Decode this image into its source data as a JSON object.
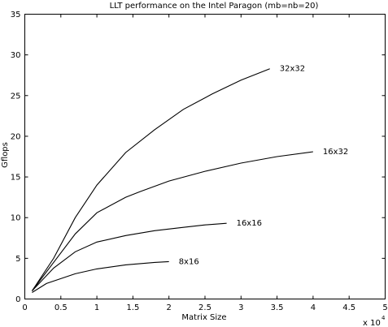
{
  "chart_data": {
    "type": "line",
    "title": "LLT performance on the Intel Paragon (mb=nb=20)",
    "xlabel": "Matrix Size",
    "ylabel": "Gflops",
    "x_multiplier_label": "x 10",
    "x_multiplier_exponent": "4",
    "xlim": [
      0,
      5
    ],
    "ylim": [
      0,
      35
    ],
    "x_ticks": [
      "0",
      "0.5",
      "1",
      "1.5",
      "2",
      "2.5",
      "3",
      "3.5",
      "4",
      "4.5",
      "5"
    ],
    "x_tick_values": [
      0,
      0.5,
      1,
      1.5,
      2,
      2.5,
      3,
      3.5,
      4,
      4.5,
      5
    ],
    "y_ticks": [
      "0",
      "5",
      "10",
      "15",
      "20",
      "25",
      "30",
      "35"
    ],
    "y_tick_values": [
      0,
      5,
      10,
      15,
      20,
      25,
      30,
      35
    ],
    "grid": false,
    "series": [
      {
        "name": "32x32",
        "x": [
          0.1,
          0.4,
          0.7,
          1.0,
          1.4,
          1.8,
          2.2,
          2.6,
          3.0,
          3.4
        ],
        "values": [
          1.0,
          5.0,
          10.0,
          14.0,
          18.0,
          20.8,
          23.3,
          25.2,
          26.9,
          28.3
        ]
      },
      {
        "name": "16x32",
        "x": [
          0.1,
          0.4,
          0.7,
          1.0,
          1.4,
          1.6,
          2.0,
          2.5,
          3.0,
          3.5,
          4.0
        ],
        "values": [
          1.0,
          4.5,
          8.0,
          10.6,
          12.5,
          13.2,
          14.5,
          15.7,
          16.7,
          17.5,
          18.1
        ]
      },
      {
        "name": "16x16",
        "x": [
          0.1,
          0.4,
          0.7,
          1.0,
          1.4,
          1.8,
          2.2,
          2.5,
          2.8
        ],
        "values": [
          1.0,
          3.8,
          5.8,
          7.0,
          7.8,
          8.4,
          8.8,
          9.1,
          9.3
        ]
      },
      {
        "name": "8x16",
        "x": [
          0.1,
          0.3,
          0.7,
          1.0,
          1.4,
          1.8,
          2.0
        ],
        "values": [
          0.8,
          1.9,
          3.1,
          3.7,
          4.2,
          4.5,
          4.6
        ]
      }
    ]
  }
}
